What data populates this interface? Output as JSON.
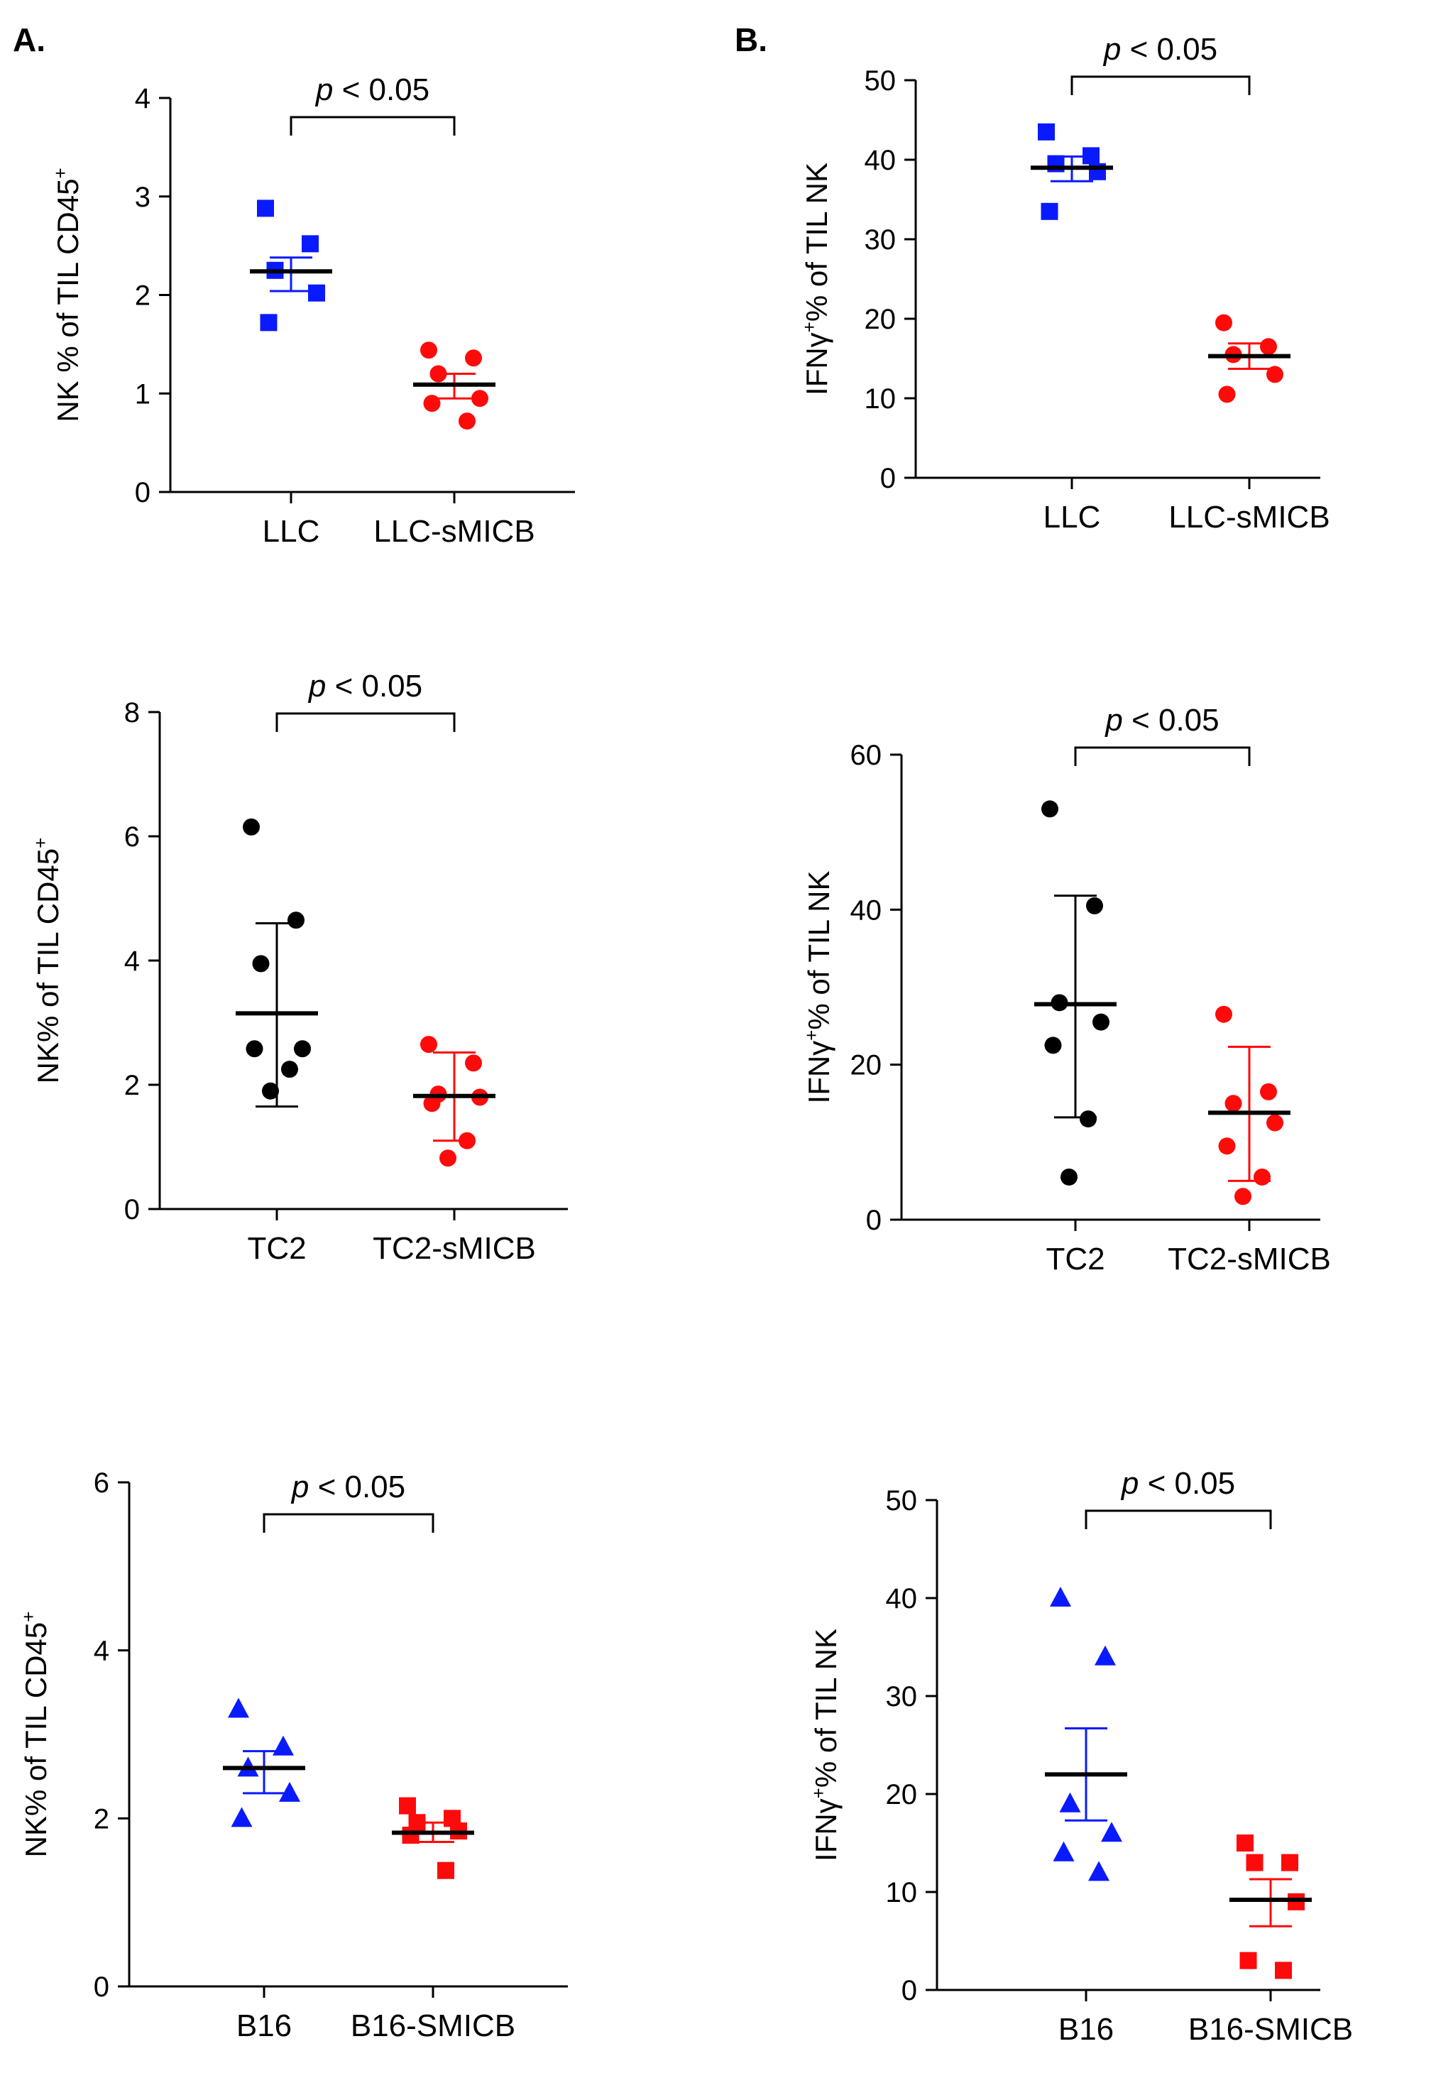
{
  "panel_labels": [
    "A.",
    "B."
  ],
  "colors": {
    "blue": "#0a1aff",
    "red": "#ff0a0a",
    "black": "#000000"
  },
  "chart_data": [
    {
      "type": "scatter",
      "ylabel_parts": [
        "NK % of TIL CD45",
        "+"
      ],
      "ylim": [
        0,
        4
      ],
      "yticks": [
        0,
        1,
        2,
        3,
        4
      ],
      "categories": [
        "LLC",
        "LLC-sMICB"
      ],
      "pvalue": {
        "p": "p",
        "rest": " < 0.05"
      },
      "series": [
        {
          "category": "LLC",
          "color": "blue",
          "marker": "square",
          "points": [
            2.88,
            2.52,
            2.25,
            2.02,
            1.72
          ],
          "mean": 2.24,
          "err_low": 2.04,
          "err_high": 2.38
        },
        {
          "category": "LLC-sMICB",
          "color": "red",
          "marker": "circle",
          "points": [
            1.44,
            1.36,
            1.2,
            0.95,
            0.9,
            0.72
          ],
          "mean": 1.09,
          "err_low": 0.95,
          "err_high": 1.2
        }
      ]
    },
    {
      "type": "scatter",
      "ylabel_parts": [
        "IFN",
        "γ",
        "+",
        "% of TIL NK"
      ],
      "ylim": [
        0,
        50
      ],
      "yticks": [
        0,
        10,
        20,
        30,
        40,
        50
      ],
      "categories": [
        "LLC",
        "LLC-sMICB"
      ],
      "pvalue": {
        "p": "p",
        "rest": " < 0.05"
      },
      "series": [
        {
          "category": "LLC",
          "color": "blue",
          "marker": "square",
          "points": [
            43.5,
            40.5,
            39.5,
            38.5,
            33.5
          ],
          "mean": 39.0,
          "err_low": 37.3,
          "err_high": 40.4
        },
        {
          "category": "LLC-sMICB",
          "color": "red",
          "marker": "circle",
          "points": [
            19.5,
            16.5,
            15.5,
            13.0,
            10.5
          ],
          "mean": 15.3,
          "err_low": 13.7,
          "err_high": 16.9
        }
      ]
    },
    {
      "type": "scatter",
      "ylabel_parts": [
        "NK% of TIL CD45",
        "+"
      ],
      "ylim": [
        0,
        8
      ],
      "yticks": [
        0,
        2,
        4,
        6,
        8
      ],
      "categories": [
        "TC2",
        "TC2-sMICB"
      ],
      "pvalue": {
        "p": "p",
        "rest": " < 0.05"
      },
      "series": [
        {
          "category": "TC2",
          "color": "black",
          "marker": "circle",
          "points": [
            6.15,
            4.65,
            3.95,
            2.58,
            2.58,
            2.25,
            1.9
          ],
          "mean": 3.15,
          "err_low": 1.65,
          "err_high": 4.6
        },
        {
          "category": "TC2-sMICB",
          "color": "red",
          "marker": "circle",
          "points": [
            2.65,
            2.35,
            1.85,
            1.8,
            1.7,
            1.1,
            0.82
          ],
          "mean": 1.82,
          "err_low": 1.1,
          "err_high": 2.52
        }
      ]
    },
    {
      "type": "scatter",
      "ylabel_parts": [
        "IFN",
        "γ",
        "+",
        "% of TIL NK"
      ],
      "ylim": [
        0,
        60
      ],
      "yticks": [
        0,
        20,
        40,
        60
      ],
      "categories": [
        "TC2",
        "TC2-sMICB"
      ],
      "pvalue": {
        "p": "p",
        "rest": " < 0.05"
      },
      "series": [
        {
          "category": "TC2",
          "color": "black",
          "marker": "circle",
          "points": [
            53,
            40.5,
            28,
            25.5,
            22.5,
            13,
            5.5
          ],
          "mean": 27.8,
          "err_low": 13.2,
          "err_high": 41.8
        },
        {
          "category": "TC2-sMICB",
          "color": "red",
          "marker": "circle",
          "points": [
            26.5,
            16.5,
            15,
            12.5,
            9.5,
            5.5,
            3
          ],
          "mean": 13.8,
          "err_low": 5.0,
          "err_high": 22.3
        }
      ]
    },
    {
      "type": "scatter",
      "ylabel_parts": [
        "NK% of TIL CD45",
        "+"
      ],
      "ylim": [
        0,
        6
      ],
      "yticks": [
        0,
        2,
        4,
        6
      ],
      "categories": [
        "B16",
        "B16-SMICB"
      ],
      "pvalue": {
        "p": "p",
        "rest": " < 0.05"
      },
      "series": [
        {
          "category": "B16",
          "color": "blue",
          "marker": "triangle",
          "points": [
            3.3,
            2.85,
            2.6,
            2.3,
            2.0
          ],
          "mean": 2.6,
          "err_low": 2.3,
          "err_high": 2.8
        },
        {
          "category": "B16-SMICB",
          "color": "red",
          "marker": "square",
          "points": [
            2.15,
            2.0,
            1.95,
            1.85,
            1.8,
            1.38
          ],
          "mean": 1.83,
          "err_low": 1.72,
          "err_high": 1.95
        }
      ]
    },
    {
      "type": "scatter",
      "ylabel_parts": [
        "IFN",
        "γ",
        "+",
        "% of TIL NK"
      ],
      "ylim": [
        0,
        50
      ],
      "yticks": [
        0,
        10,
        20,
        30,
        40,
        50
      ],
      "categories": [
        "B16",
        "B16-SMICB"
      ],
      "pvalue": {
        "p": "p",
        "rest": " < 0.05"
      },
      "series": [
        {
          "category": "B16",
          "color": "blue",
          "marker": "triangle",
          "points": [
            40,
            34,
            19,
            16,
            14,
            12
          ],
          "mean": 22.0,
          "err_low": 17.3,
          "err_high": 26.7
        },
        {
          "category": "B16-SMICB",
          "color": "red",
          "marker": "square",
          "points": [
            15,
            13,
            13,
            9,
            3,
            2
          ],
          "mean": 9.2,
          "err_low": 6.5,
          "err_high": 11.3
        }
      ]
    }
  ]
}
